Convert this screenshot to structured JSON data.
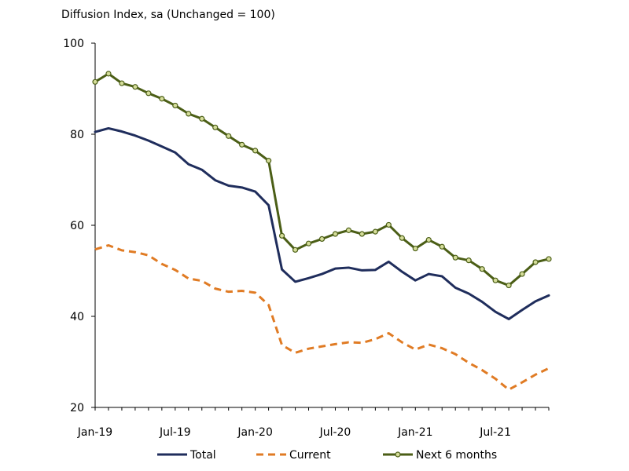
{
  "chart_data": {
    "type": "line",
    "title": "Diffusion Index, sa (Unchanged = 100)",
    "xlabel": "",
    "ylabel": "",
    "ylim": [
      20,
      100
    ],
    "yticks": [
      20,
      40,
      60,
      80,
      100
    ],
    "xticks": [
      "Jan-19",
      "Jul-19",
      "Jan-20",
      "Jul-20",
      "Jan-21",
      "Jul-21"
    ],
    "x": [
      "Jan-19",
      "Feb-19",
      "Mar-19",
      "Apr-19",
      "May-19",
      "Jun-19",
      "Jul-19",
      "Aug-19",
      "Sep-19",
      "Oct-19",
      "Nov-19",
      "Dec-19",
      "Jan-20",
      "Feb-20",
      "Mar-20",
      "Apr-20",
      "May-20",
      "Jun-20",
      "Jul-20",
      "Aug-20",
      "Sep-20",
      "Oct-20",
      "Nov-20",
      "Dec-20",
      "Jan-21",
      "Feb-21",
      "Mar-21",
      "Apr-21",
      "May-21",
      "Jun-21",
      "Jul-21",
      "Aug-21",
      "Sep-21",
      "Oct-21",
      "Nov-21"
    ],
    "grid": false,
    "legend_position": "bottom",
    "series": [
      {
        "name": "Total",
        "color": "#1f2d5c",
        "style": "solid",
        "values": [
          80.5,
          81.3,
          80.6,
          79.7,
          78.6,
          77.3,
          76.0,
          73.4,
          72.2,
          69.9,
          68.7,
          68.3,
          67.4,
          64.4,
          50.3,
          47.6,
          48.4,
          49.3,
          50.5,
          50.7,
          50.1,
          50.2,
          52.0,
          49.8,
          47.9,
          49.3,
          48.8,
          46.3,
          45.0,
          43.2,
          41.0,
          39.4,
          41.4,
          43.3,
          44.6
        ]
      },
      {
        "name": "Current",
        "color": "#e07b24",
        "style": "dashed",
        "values": [
          54.7,
          55.6,
          54.5,
          54.1,
          53.4,
          51.5,
          50.2,
          48.3,
          47.8,
          46.1,
          45.4,
          45.6,
          45.2,
          42.5,
          33.7,
          32.0,
          32.9,
          33.4,
          33.9,
          34.3,
          34.2,
          35.0,
          36.3,
          34.3,
          32.7,
          33.8,
          33.0,
          31.7,
          29.8,
          28.2,
          26.3,
          23.9,
          25.5,
          27.2,
          28.6
        ]
      },
      {
        "name": "Next 6 months",
        "color": "#4b5e16",
        "style": "solid-markers",
        "marker_fill": "#d5dd9a",
        "values": [
          91.5,
          93.3,
          91.2,
          90.4,
          89.0,
          87.8,
          86.3,
          84.5,
          83.4,
          81.5,
          79.6,
          77.7,
          76.4,
          74.2,
          57.7,
          54.6,
          56.0,
          57.0,
          58.1,
          58.9,
          58.1,
          58.6,
          60.1,
          57.2,
          54.9,
          56.8,
          55.3,
          52.9,
          52.3,
          50.4,
          47.9,
          46.8,
          49.3,
          51.9,
          52.6
        ]
      }
    ]
  }
}
